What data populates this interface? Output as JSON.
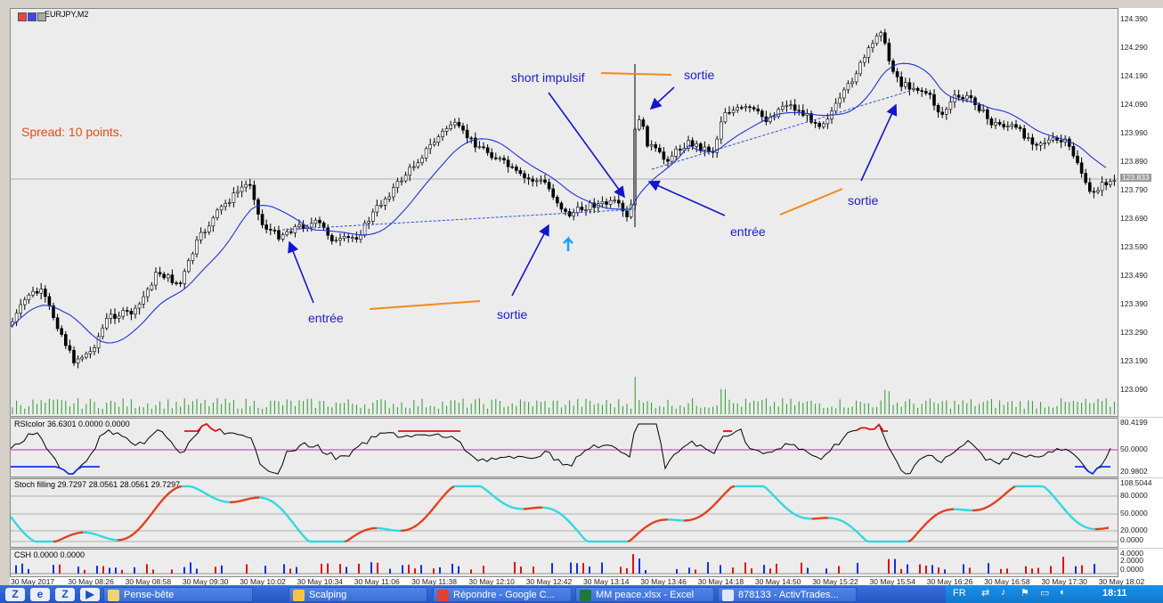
{
  "window": {
    "symbol": "EURJPY,M2"
  },
  "annotations": {
    "spread": "Spread: 10 points.",
    "short_impulsif": "short impulsif",
    "entree_1": "entrée",
    "entree_2": "entrée",
    "sortie_1": "sortie",
    "sortie_2": "sortie",
    "sortie_3": "sortie"
  },
  "main_axis": {
    "ticks": [
      "124.390",
      "124.290",
      "124.190",
      "124.090",
      "123.990",
      "123.890",
      "123.790",
      "123.690",
      "123.590",
      "123.490",
      "123.390",
      "123.290",
      "123.190",
      "123.090"
    ],
    "current_price": "123.833"
  },
  "rsi": {
    "label": "RSIcolor 36.6301 0.0000 0.0000",
    "ticks": [
      "80.4199",
      "50.0000",
      "20.9802"
    ]
  },
  "stoch": {
    "label": "Stoch filling 29.7297 28.0561 28.0561 29.7297",
    "ticks": [
      "108.5044",
      "80.0000",
      "50.0000",
      "20.0000",
      "0.0000"
    ]
  },
  "csh": {
    "label": "CSH 0.0000 0.0000",
    "ticks": [
      "4.0000",
      "2.0000",
      "0.0000"
    ]
  },
  "time_axis": {
    "labels": [
      "30 May 2017",
      "30 May 08:26",
      "30 May 08:58",
      "30 May 09:30",
      "30 May 10:02",
      "30 May 10:34",
      "30 May 11:06",
      "30 May 11:38",
      "30 May 12:10",
      "30 May 12:42",
      "30 May 13:14",
      "30 May 13:46",
      "30 May 14:18",
      "30 May 14:50",
      "30 May 15:22",
      "30 May 15:54",
      "30 May 16:26",
      "30 May 16:58",
      "30 May 17:30",
      "30 May 18:02"
    ]
  },
  "taskbar": {
    "tasks": [
      {
        "label": "Pense-bête",
        "icon": "note-icon",
        "color": "#f3d36b"
      },
      {
        "label": "Scalping",
        "icon": "folder-icon",
        "color": "#f5c542"
      },
      {
        "label": "Répondre - Google C...",
        "icon": "chrome-icon",
        "color": "#e34133"
      },
      {
        "label": "MM peace.xlsx - Excel",
        "icon": "excel-icon",
        "color": "#1e7a3c"
      },
      {
        "label": "878133 - ActivTrades...",
        "icon": "terminal-icon",
        "color": "#dfe6f5"
      }
    ],
    "language": "FR",
    "clock": "18:11"
  }
}
